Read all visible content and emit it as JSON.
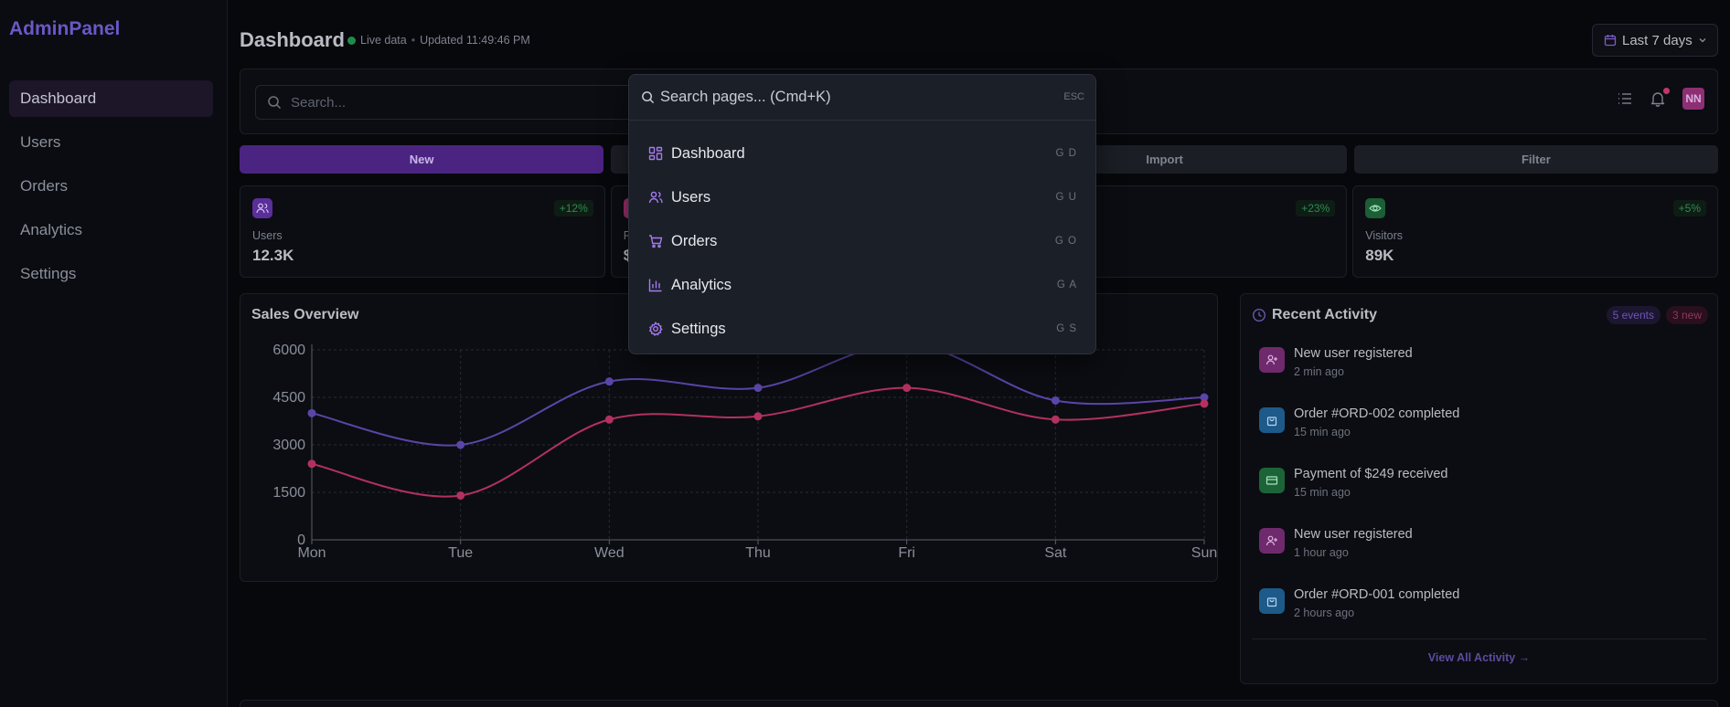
{
  "sidebar": {
    "brand": "AdminPanel",
    "items": [
      {
        "label": "Dashboard",
        "active": true
      },
      {
        "label": "Users"
      },
      {
        "label": "Orders"
      },
      {
        "label": "Analytics"
      },
      {
        "label": "Settings"
      }
    ]
  },
  "header": {
    "title": "Dashboard",
    "live_label": "Live data",
    "separator": "•",
    "updated": "Updated 11:49:46 PM",
    "date_range": "Last 7 days"
  },
  "search": {
    "placeholder": "Search..."
  },
  "user": {
    "initials": "NN"
  },
  "actions": [
    "New",
    "",
    "Import",
    "Filter"
  ],
  "stats": [
    {
      "label": "Users",
      "value": "12.3K",
      "change": "+12%",
      "icon": "users-icon",
      "color": "#6f3fb0"
    },
    {
      "label": "R",
      "value": "$",
      "change": "",
      "icon": "card-icon",
      "color": "#9a2f6b"
    },
    {
      "label": "",
      "value": "",
      "change": "+23%",
      "icon": "",
      "color": ""
    },
    {
      "label": "Visitors",
      "value": "89K",
      "change": "+5%",
      "icon": "eye-icon",
      "color": "#1f6b3c"
    }
  ],
  "chart_data": {
    "type": "line",
    "title": "Sales Overview",
    "categories": [
      "Mon",
      "Tue",
      "Wed",
      "Thu",
      "Fri",
      "Sat",
      "Sun"
    ],
    "yticks": [
      0,
      1500,
      3000,
      4500,
      6000
    ],
    "ylim": [
      0,
      6000
    ],
    "grid": true,
    "series": [
      {
        "values": [
          4000,
          3000,
          5000,
          4800,
          6200,
          4400,
          4500
        ],
        "color": "#5b45a8"
      },
      {
        "values": [
          2400,
          1400,
          3800,
          3900,
          4800,
          3800,
          4300
        ],
        "color": "#b3315e"
      }
    ]
  },
  "activity": {
    "title": "Recent Activity",
    "events_badge": "5 events",
    "new_badge": "3 new",
    "items": [
      {
        "text": "New user registered",
        "time": "2 min ago",
        "icon": "user-plus-icon",
        "color": "#7b2d7a"
      },
      {
        "text": "Order #ORD-002 completed",
        "time": "15 min ago",
        "icon": "bag-icon",
        "color": "#1d5a8a"
      },
      {
        "text": "Payment of $249 received",
        "time": "15 min ago",
        "icon": "card-icon",
        "color": "#1f6b3c"
      },
      {
        "text": "New user registered",
        "time": "1 hour ago",
        "icon": "user-plus-icon",
        "color": "#7b2d7a"
      },
      {
        "text": "Order #ORD-001 completed",
        "time": "2 hours ago",
        "icon": "bag-icon",
        "color": "#1d5a8a"
      }
    ],
    "view_all": "View All Activity →"
  },
  "palette": {
    "placeholder": "Search pages... (Cmd+K)",
    "esc": "ESC",
    "items": [
      {
        "label": "Dashboard",
        "shortcut": "G D",
        "icon": "dashboard-icon"
      },
      {
        "label": "Users",
        "shortcut": "G U",
        "icon": "users-icon"
      },
      {
        "label": "Orders",
        "shortcut": "G O",
        "icon": "cart-icon"
      },
      {
        "label": "Analytics",
        "shortcut": "G A",
        "icon": "bar-chart-icon"
      },
      {
        "label": "Settings",
        "shortcut": "G S",
        "icon": "gear-icon"
      }
    ]
  }
}
